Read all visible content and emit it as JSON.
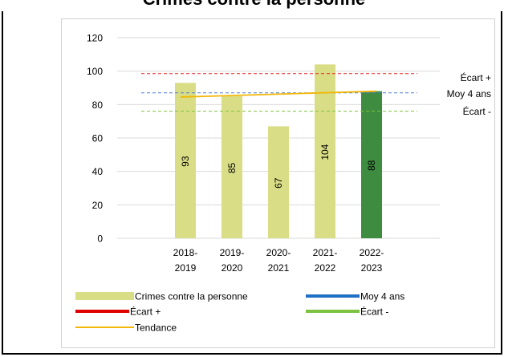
{
  "page_title": "Crimes contre la personne",
  "chart_data": {
    "type": "bar",
    "categories": [
      [
        "2018-",
        "2019"
      ],
      [
        "2019-",
        "2020"
      ],
      [
        "2020-",
        "2021"
      ],
      [
        "2021-",
        "2022"
      ],
      [
        "2022-",
        "2023"
      ]
    ],
    "series": [
      {
        "name": "Crimes contre la personne",
        "values": [
          93,
          85,
          67,
          104,
          88
        ],
        "color": "#d9de86",
        "last_color": "#3d8c40"
      }
    ],
    "reference_lines": [
      {
        "name": "Écart +",
        "value": 98.5,
        "color": "#e52222",
        "style": "dashed"
      },
      {
        "name": "Moy 4 ans",
        "value": 87,
        "color": "#4a7fd4",
        "style": "dashed"
      },
      {
        "name": "Écart -",
        "value": 76,
        "color": "#7ec241",
        "style": "dashed"
      }
    ],
    "trend": {
      "name": "Tendance",
      "start": 84.5,
      "end": 88,
      "color": "#f2b705"
    },
    "right_labels": [
      "Écart +",
      "Moy 4 ans",
      "Écart -"
    ],
    "ylim": [
      0,
      120
    ],
    "yticks": [
      0,
      20,
      40,
      60,
      80,
      100,
      120
    ],
    "grid": true,
    "legend_position": "bottom",
    "legend": [
      {
        "label": "Crimes contre la personne",
        "color": "#d9de86",
        "kind": "bar"
      },
      {
        "label": "Moy 4 ans",
        "color": "#1f6fc5",
        "kind": "thick-line"
      },
      {
        "label": "Écart +",
        "color": "#e00000",
        "kind": "thick-line"
      },
      {
        "label": "Écart -",
        "color": "#7ec241",
        "kind": "thick-line"
      },
      {
        "label": "Tendance",
        "color": "#f2b705",
        "kind": "thin-line"
      }
    ]
  }
}
